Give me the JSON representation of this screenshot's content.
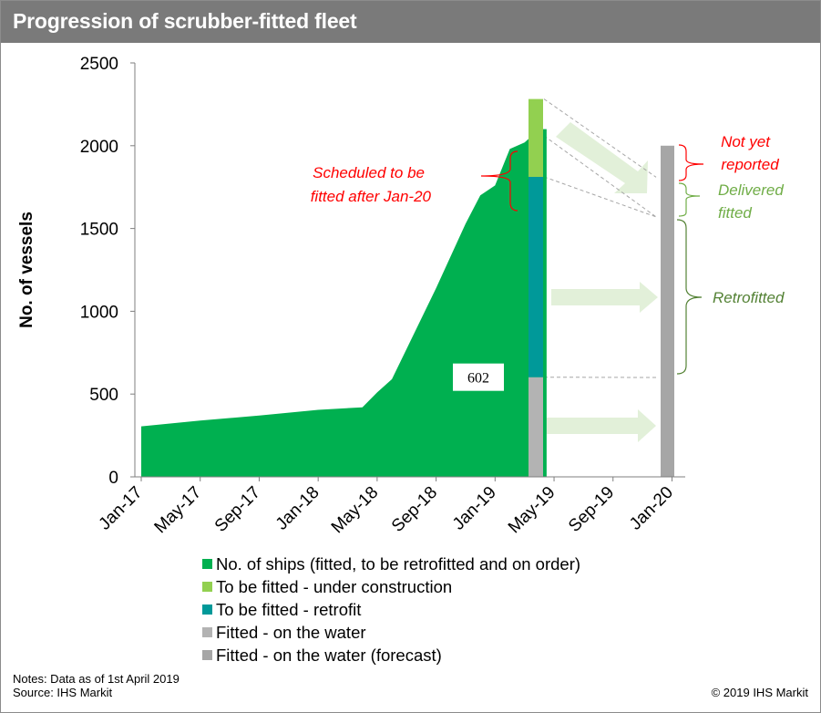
{
  "header": {
    "title": "Progression of scrubber-fitted fleet"
  },
  "chart_data": {
    "type": "area",
    "title": "Progression of scrubber-fitted fleet",
    "xlabel": "",
    "ylabel": "No. of vessels",
    "ylim": [
      0,
      2500
    ],
    "yticks": [
      "0",
      "500",
      "1000",
      "1500",
      "2000",
      "2500"
    ],
    "xticks": [
      "Jan-17",
      "May-17",
      "Sep-17",
      "Jan-18",
      "May-18",
      "Sep-18",
      "Jan-19",
      "May-19",
      "Sep-19",
      "Jan-20"
    ],
    "grid": false,
    "legend_position": "bottom",
    "series": [
      {
        "name": "No. of ships (fitted, to be retrofitted and on order)",
        "color": "#00b050",
        "kind": "area",
        "x": [
          "2017-01",
          "2017-05",
          "2017-09",
          "2018-01",
          "2018-04",
          "2018-05",
          "2018-06",
          "2018-09",
          "2018-11",
          "2018-12",
          "2019-01",
          "2019-02",
          "2019-03",
          "2019-04"
        ],
        "values": [
          305,
          340,
          370,
          405,
          420,
          510,
          590,
          1140,
          1530,
          1700,
          1760,
          1980,
          2020,
          2100
        ]
      },
      {
        "name": "To be fitted - under construction",
        "color": "#92d050",
        "kind": "stacked_bar",
        "x": "2019-04",
        "values": [
          470
        ]
      },
      {
        "name": "To be fitted - retrofit",
        "color": "#009999",
        "kind": "stacked_bar",
        "x": "2019-04",
        "values": [
          1210
        ]
      },
      {
        "name": "Fitted - on the water",
        "color": "#b3b3b3",
        "kind": "stacked_bar",
        "x": "2019-04",
        "values": [
          602
        ]
      },
      {
        "name": "Fitted - on the water (forecast)",
        "color": "#a6a6a6",
        "kind": "bar",
        "x": "2020-01",
        "values": [
          2000
        ]
      }
    ],
    "data_labels": [
      {
        "text": "602",
        "x": "2019-04",
        "value": 602
      }
    ],
    "annotations": {
      "scheduled_line1": "Scheduled to be",
      "scheduled_line2": "fitted after Jan-20",
      "not_yet_line1": "Not yet",
      "not_yet_line2": "reported",
      "delivered_line1": "Delivered",
      "delivered_line2": "fitted",
      "retrofitted": "Retrofitted"
    },
    "annotation_colors": {
      "red": "#ff0000",
      "green": "#70ad47",
      "dark_green": "#548235",
      "arrow": "#e2f0d9",
      "dash": "#a6a6a6"
    }
  },
  "footer": {
    "notes": "Notes: Data as of 1st April 2019",
    "source": "Source: IHS Markit",
    "copyright": "© 2019 IHS Markit"
  }
}
